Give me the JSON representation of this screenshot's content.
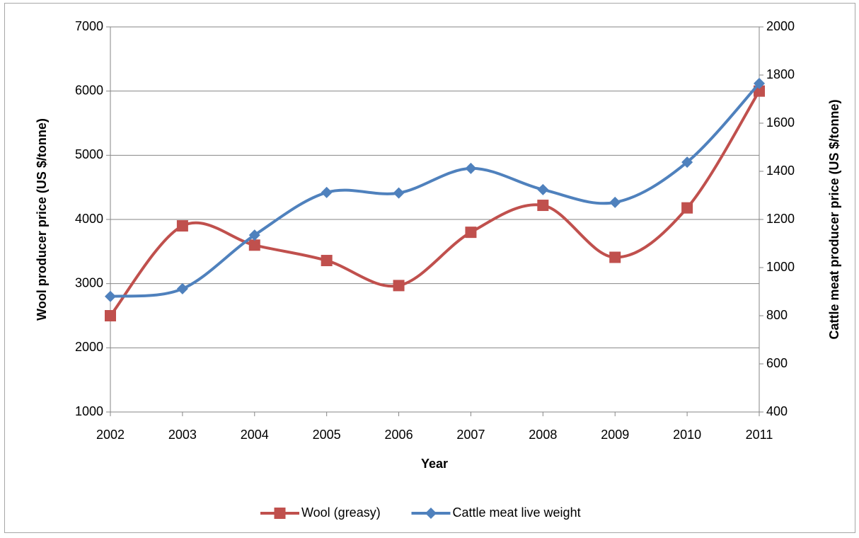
{
  "chart_data": {
    "type": "line",
    "x_label": "Year",
    "y_label": "Wool producer price (US $/tonne)",
    "y2_label": "Cattle meat producer price (US $/tonne)",
    "x": [
      2002,
      2003,
      2004,
      2005,
      2006,
      2007,
      2008,
      2009,
      2010,
      2011
    ],
    "xlim": [
      2002,
      2011
    ],
    "xticks": [
      2002,
      2003,
      2004,
      2005,
      2006,
      2007,
      2008,
      2009,
      2010,
      2011
    ],
    "ylim": [
      1000,
      7000
    ],
    "yticks": [
      1000,
      2000,
      3000,
      4000,
      5000,
      6000,
      7000
    ],
    "y2lim": [
      400,
      2000
    ],
    "y2ticks": [
      400,
      600,
      800,
      1000,
      1200,
      1400,
      1600,
      1800,
      2000
    ],
    "grid": true,
    "legend": "bottom",
    "series": [
      {
        "name": "Wool (greasy)",
        "color": "#c0504d",
        "marker": "square",
        "values": [
          2500,
          3900,
          3600,
          3360,
          2970,
          3800,
          4220,
          3410,
          4180,
          6000
        ]
      },
      {
        "name": "Cattle meat live weight",
        "color": "#4f81bd",
        "marker": "diamond",
        "axis": "y2",
        "values": [
          880,
          912,
          1135,
          1312,
          1310,
          1412,
          1324,
          1271,
          1438,
          1765
        ]
      }
    ]
  }
}
